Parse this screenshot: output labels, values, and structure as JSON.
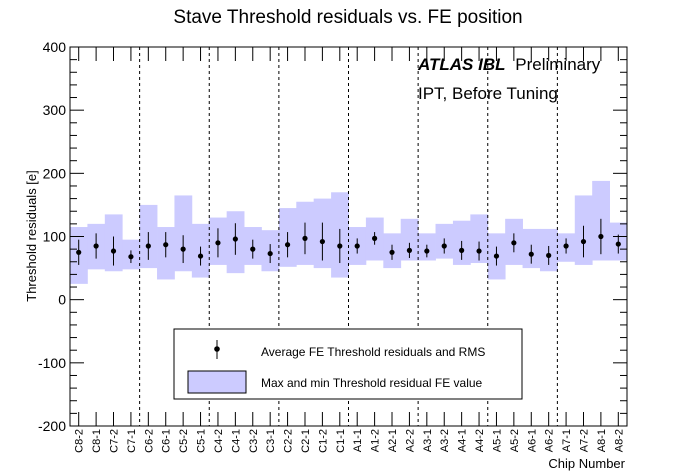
{
  "chart_data": {
    "type": "scatter",
    "title": "Stave Threshold residuals vs. FE position",
    "xlabel": "Chip Number",
    "ylabel": "Threshold residuals [e]",
    "ylim": [
      -200,
      400
    ],
    "yticks": [
      -200,
      -100,
      0,
      100,
      200,
      300,
      400
    ],
    "grid": false,
    "legend_position": "bottom-center",
    "annotation_atlas": "ATLAS IBL",
    "annotation_prelim": "Preliminary",
    "annotation_2": "IPT, Before Tuning",
    "categories": [
      "C8-2",
      "C8-1",
      "C7-2",
      "C7-1",
      "C6-2",
      "C6-1",
      "C5-2",
      "C5-1",
      "C4-2",
      "C4-1",
      "C3-2",
      "C3-1",
      "C2-2",
      "C2-1",
      "C1-2",
      "C1-1",
      "A1-1",
      "A1-2",
      "A2-1",
      "A2-2",
      "A3-1",
      "A3-2",
      "A4-1",
      "A4-2",
      "A5-1",
      "A5-2",
      "A6-1",
      "A6-2",
      "A7-1",
      "A7-2",
      "A8-1",
      "A8-2"
    ],
    "module_boundaries_after_index": [
      3,
      7,
      11,
      15,
      19,
      23,
      27
    ],
    "series": [
      {
        "name": "Average FE Threshold residuals and RMS",
        "values": [
          75,
          85,
          77,
          68,
          85,
          87,
          80,
          69,
          90,
          96,
          80,
          73,
          87,
          97,
          92,
          85,
          85,
          97,
          75,
          78,
          77,
          85,
          78,
          77,
          69,
          90,
          72,
          70,
          85,
          92,
          100,
          88
        ],
        "rms": [
          20,
          20,
          23,
          10,
          22,
          20,
          22,
          15,
          23,
          25,
          15,
          15,
          20,
          25,
          30,
          27,
          12,
          10,
          12,
          12,
          10,
          12,
          15,
          15,
          15,
          15,
          15,
          15,
          12,
          25,
          28,
          15
        ]
      },
      {
        "name": "Max and min Threshold residual FE value",
        "min": [
          25,
          48,
          45,
          48,
          50,
          32,
          45,
          35,
          55,
          42,
          55,
          45,
          52,
          55,
          50,
          35,
          55,
          62,
          50,
          62,
          62,
          65,
          55,
          58,
          32,
          55,
          50,
          45,
          60,
          55,
          62,
          62
        ],
        "max": [
          115,
          120,
          135,
          95,
          150,
          115,
          165,
          120,
          130,
          140,
          115,
          110,
          145,
          155,
          160,
          170,
          115,
          130,
          105,
          128,
          105,
          120,
          125,
          135,
          105,
          128,
          112,
          112,
          105,
          165,
          188,
          122
        ]
      }
    ],
    "colors": {
      "band_fill": "#cccbff",
      "band_stroke": "#000000",
      "marker": "#000000",
      "divider": "#000000"
    }
  }
}
